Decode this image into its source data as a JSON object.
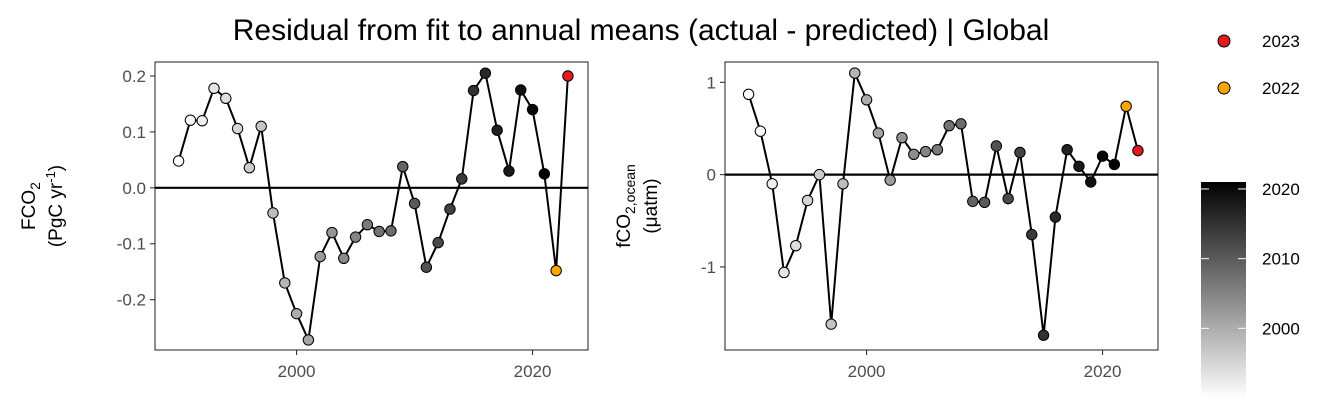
{
  "title": "Residual from fit to annual means (actual - predicted) | Global",
  "legend": {
    "items": [
      {
        "label": "2023",
        "color": "#e41a1c"
      },
      {
        "label": "2022",
        "color": "#ffa500"
      }
    ],
    "colorbar": {
      "ticks": [
        "2020",
        "2010",
        "2000"
      ],
      "tick_values": [
        2020,
        2010,
        2000
      ],
      "range": [
        1990,
        2021
      ],
      "low_color": "#ffffff",
      "high_color": "#000000"
    }
  },
  "chart_data": [
    {
      "type": "line",
      "ylabel_line1": "FCO",
      "ylabel_sub": "2",
      "ylabel_line2_pre": "(PgC yr",
      "ylabel_line2_sup": "-1",
      "ylabel_line2_post": ")",
      "xlim": [
        1988,
        2024.7
      ],
      "ylim": [
        -0.29,
        0.225
      ],
      "xticks": [
        2000,
        2020
      ],
      "xtick_labels": [
        "2000",
        "2020"
      ],
      "yticks": [
        0.2,
        0.1,
        0.0,
        -0.1,
        -0.2
      ],
      "ytick_labels": [
        "0.2",
        "0.1",
        "0.0",
        "-0.1",
        "-0.2"
      ],
      "hline": 0,
      "x": [
        1990,
        1991,
        1992,
        1993,
        1994,
        1995,
        1996,
        1997,
        1998,
        1999,
        2000,
        2001,
        2002,
        2003,
        2004,
        2005,
        2006,
        2007,
        2008,
        2009,
        2010,
        2011,
        2012,
        2013,
        2014,
        2015,
        2016,
        2017,
        2018,
        2019,
        2020,
        2021,
        2022,
        2023
      ],
      "y": [
        0.048,
        0.121,
        0.12,
        0.178,
        0.16,
        0.106,
        0.036,
        0.11,
        -0.045,
        -0.17,
        -0.225,
        -0.272,
        -0.123,
        -0.08,
        -0.126,
        -0.088,
        -0.066,
        -0.078,
        -0.077,
        0.038,
        -0.028,
        -0.142,
        -0.098,
        -0.038,
        0.016,
        0.174,
        0.205,
        0.103,
        0.03,
        0.175,
        0.14,
        0.025,
        -0.148,
        0.2
      ]
    },
    {
      "type": "line",
      "ylabel_line1": "fCO",
      "ylabel_sub": "2,ocean",
      "ylabel_line2_pre": "(μatm)",
      "ylabel_line2_sup": "",
      "ylabel_line2_post": "",
      "xlim": [
        1988,
        2024.7
      ],
      "ylim": [
        -1.9,
        1.22
      ],
      "xticks": [
        2000,
        2020
      ],
      "xtick_labels": [
        "2000",
        "2020"
      ],
      "yticks": [
        1,
        0,
        -1
      ],
      "ytick_labels": [
        "1",
        "0",
        "-1"
      ],
      "hline": 0,
      "x": [
        1990,
        1991,
        1992,
        1993,
        1994,
        1995,
        1996,
        1997,
        1998,
        1999,
        2000,
        2001,
        2002,
        2003,
        2004,
        2005,
        2006,
        2007,
        2008,
        2009,
        2010,
        2011,
        2012,
        2013,
        2014,
        2015,
        2016,
        2017,
        2018,
        2019,
        2020,
        2021,
        2022,
        2023
      ],
      "y": [
        0.87,
        0.47,
        -0.1,
        -1.06,
        -0.77,
        -0.28,
        0.0,
        -1.62,
        -0.1,
        1.1,
        0.81,
        0.45,
        -0.06,
        0.4,
        0.22,
        0.25,
        0.27,
        0.53,
        0.55,
        -0.29,
        -0.3,
        0.31,
        -0.26,
        0.24,
        -0.65,
        -1.74,
        -0.46,
        0.27,
        0.09,
        -0.08,
        0.2,
        0.11,
        0.74,
        0.26
      ]
    }
  ]
}
